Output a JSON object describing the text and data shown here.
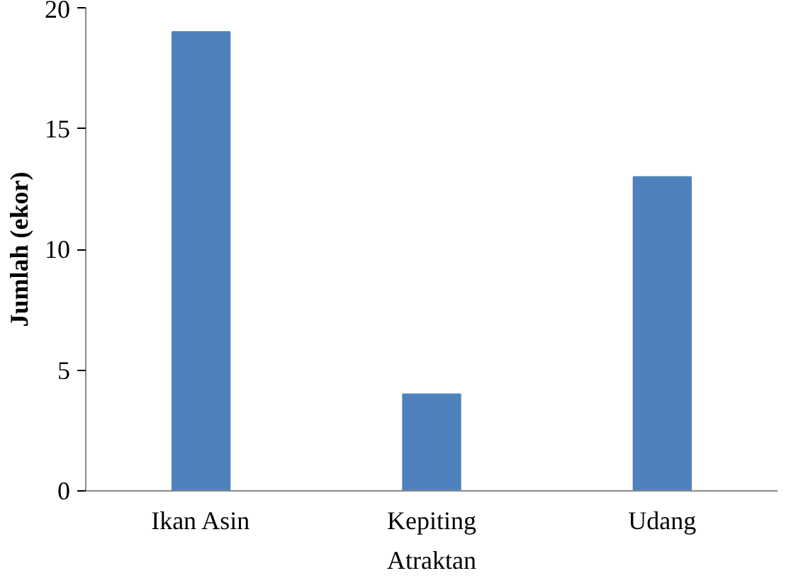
{
  "chart_data": {
    "type": "bar",
    "xlabel": "Atraktan",
    "ylabel": "Jumlah (ekor)",
    "categories": [
      "Ikan Asin",
      "Kepiting",
      "Udang"
    ],
    "values": [
      19,
      4,
      13
    ],
    "color": "#4f81bd",
    "ylim": [
      0,
      20
    ],
    "yticks": [
      0,
      5,
      10,
      15,
      20
    ],
    "grid": false
  }
}
